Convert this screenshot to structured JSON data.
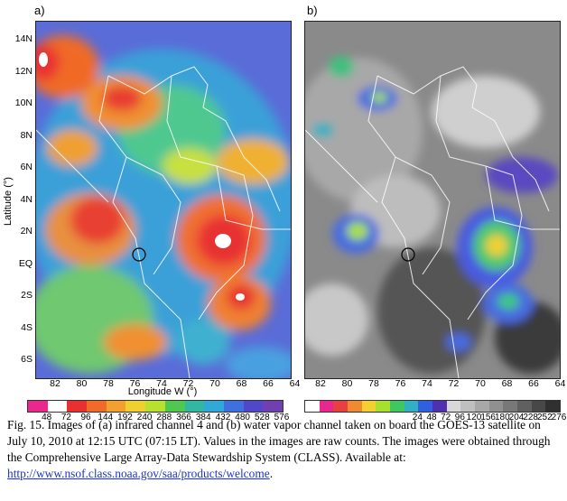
{
  "panels": [
    {
      "letter": "a)"
    },
    {
      "letter": "b)"
    }
  ],
  "axes": {
    "ylabel": "Latitude (°)",
    "xlabel": "Longitude W (°)",
    "yticks": [
      "14N",
      "12N",
      "10N",
      "8N",
      "6N",
      "4N",
      "2N",
      "EQ",
      "2S",
      "4S",
      "6S"
    ],
    "xticks": [
      "82",
      "80",
      "78",
      "76",
      "74",
      "72",
      "70",
      "68",
      "66",
      "64"
    ]
  },
  "colorbar_a": {
    "labels": [
      "48",
      "72",
      "96",
      "144",
      "192",
      "240",
      "288",
      "366",
      "384",
      "432",
      "480",
      "528",
      "576"
    ],
    "colors": [
      "#e8288c",
      "#ffffff",
      "#e83030",
      "#f06a28",
      "#f2a030",
      "#f0d030",
      "#b8e030",
      "#50c850",
      "#30b8a0",
      "#30a8d8",
      "#4070e0",
      "#5048c8",
      "#7040b0"
    ]
  },
  "colorbar_b": {
    "labels": [
      "24",
      "48",
      "72",
      "96",
      "120",
      "156",
      "180",
      "204",
      "228",
      "252",
      "276"
    ],
    "colors": [
      "#ffffff",
      "#e8288c",
      "#e84040",
      "#f08a30",
      "#f2d030",
      "#a8e030",
      "#40c860",
      "#30b0c0",
      "#3060e0",
      "#5030b0",
      "#d8d8d8",
      "#bfbfbf",
      "#a8a8a8",
      "#909090",
      "#787878",
      "#606060",
      "#484848",
      "#303030"
    ]
  },
  "caption": {
    "text": "Fig. 15. Images of (a) infrared channel 4 and (b) water vapor channel taken on board the GOES-13 satellite on July 10, 2010 at 12:15 UTC (07:15 LT). Values in the images are raw counts. The images were obtained through the Comprehensive Large Array-Data Stewardship System (CLASS). Available at: ",
    "link": "http://www.nsof.class.noaa.gov/saa/products/welcome",
    "end": "."
  }
}
